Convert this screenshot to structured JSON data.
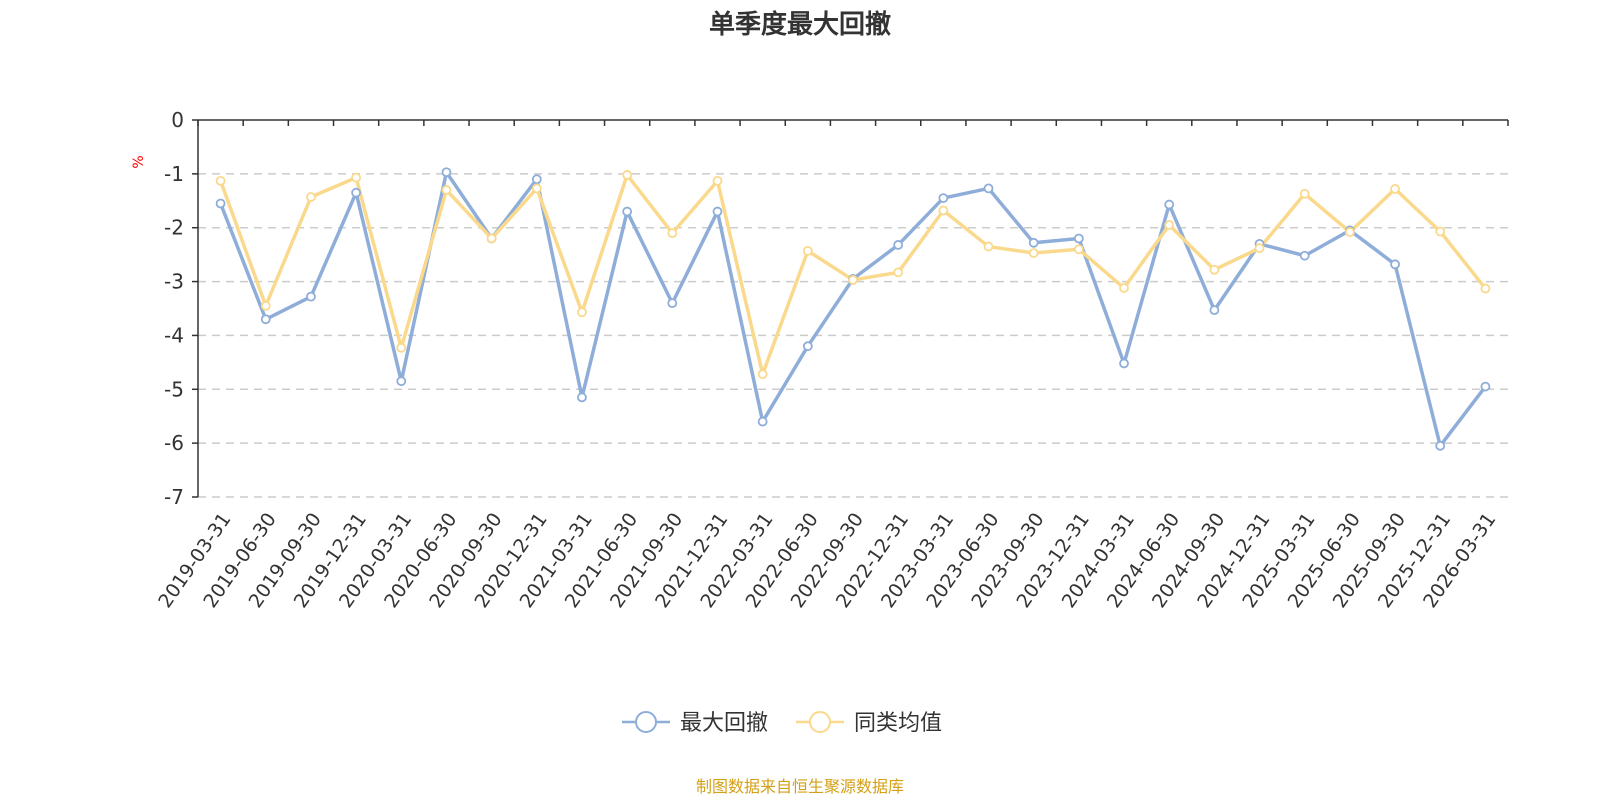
{
  "chart_data": {
    "type": "line",
    "title": "单季度最大回撤",
    "ylabel": "%",
    "ylim": [
      -7,
      0
    ],
    "yticks": [
      "0",
      "-1",
      "-2",
      "-3",
      "-4",
      "-5",
      "-6",
      "-7"
    ],
    "ytick_values": [
      0,
      -1,
      -2,
      -3,
      -4,
      -5,
      -6,
      -7
    ],
    "grid": "dashed horizontal",
    "legend_position": "bottom-center",
    "categories": [
      "2019-03-31",
      "2019-06-30",
      "2019-09-30",
      "2019-12-31",
      "2020-03-31",
      "2020-06-30",
      "2020-09-30",
      "2020-12-31",
      "2021-03-31",
      "2021-06-30",
      "2021-09-30",
      "2021-12-31",
      "2022-03-31",
      "2022-06-30",
      "2022-09-30",
      "2022-12-31",
      "2023-03-31",
      "2023-06-30",
      "2023-09-30",
      "2023-12-31",
      "2024-03-31",
      "2024-06-30",
      "2024-09-30",
      "2024-12-31",
      "2025-03-31",
      "2025-06-30",
      "2025-09-30",
      "2025-12-31",
      "2026-03-31"
    ],
    "series": [
      {
        "name": "最大回撤",
        "color": "#8eadd9",
        "values": [
          -1.55,
          -3.7,
          -3.28,
          -1.35,
          -4.85,
          -0.97,
          -2.2,
          -1.1,
          -5.15,
          -1.7,
          -3.4,
          -1.7,
          -5.6,
          -4.2,
          -2.95,
          -2.32,
          -1.45,
          -1.27,
          -2.28,
          -2.2,
          -4.52,
          -1.57,
          -3.53,
          -2.3,
          -2.52,
          -2.05,
          -2.68,
          -6.05,
          -4.95
        ]
      },
      {
        "name": "同类均值",
        "color": "#fad98c",
        "values": [
          -1.13,
          -3.45,
          -1.43,
          -1.07,
          -4.23,
          -1.3,
          -2.2,
          -1.27,
          -3.57,
          -1.02,
          -2.1,
          -1.13,
          -4.72,
          -2.43,
          -2.97,
          -2.83,
          -1.68,
          -2.35,
          -2.47,
          -2.4,
          -3.12,
          -1.95,
          -2.78,
          -2.38,
          -1.37,
          -2.08,
          -1.28,
          -2.07,
          -3.13
        ]
      }
    ]
  },
  "source_text": "制图数据来自恒生聚源数据库",
  "colors": {
    "axis": "#333333",
    "grid": "#cccccc",
    "unit": "#ff0000",
    "source": "#d4a017"
  }
}
